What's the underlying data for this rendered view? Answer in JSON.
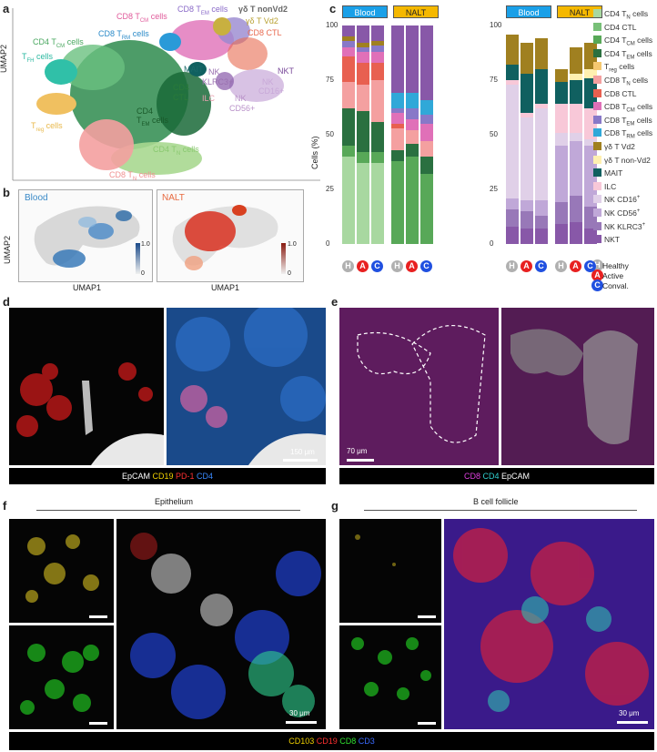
{
  "panels": {
    "a": "a",
    "b": "b",
    "c": "c",
    "d": "d",
    "e": "e",
    "f": "f",
    "g": "g"
  },
  "umap_a": {
    "ylabel": "UMAP2",
    "labels": [
      {
        "text": "CD8 T",
        "sub": "CM",
        "suffix": " cells",
        "color": "#e05a9a"
      },
      {
        "text": "CD8 T",
        "sub": "EM",
        "suffix": " cells",
        "color": "#8a6ac8"
      },
      {
        "text": "γδ T nonVd2",
        "color": "#666"
      },
      {
        "text": "γδ T Vd2",
        "color": "#b8a030"
      },
      {
        "text": "CD8 CTL",
        "color": "#e86a50"
      },
      {
        "text": "CD4 T",
        "sub": "CM",
        "suffix": " cells",
        "color": "#4aa860"
      },
      {
        "text": "CD8 T",
        "sub": "RM",
        "suffix": " cells",
        "color": "#2a8ac8"
      },
      {
        "text": "T",
        "sub": "FH",
        "suffix": " cells",
        "color": "#2ab8a0"
      },
      {
        "text": "MAIT",
        "color": "#1a6a6a"
      },
      {
        "text": "NKT",
        "color": "#7a4a9a"
      },
      {
        "text": "NK",
        "color": "#9a70b0"
      },
      {
        "text": "KLRC3+",
        "color": "#9a70b0"
      },
      {
        "text": "CD4",
        "color": "#2a7a3a"
      },
      {
        "text": "CTL",
        "color": "#2a7a3a"
      },
      {
        "text": "CD4",
        "color": "#1a5a2a"
      },
      {
        "text": "T",
        "sub": "EM",
        "suffix": " cells",
        "color": "#1a5a2a"
      },
      {
        "text": "ILC",
        "color": "#e8a0b0"
      },
      {
        "text": "NK",
        "color": "#c8a8d8"
      },
      {
        "text": "CD16+",
        "color": "#c8a8d8"
      },
      {
        "text": "NK",
        "color": "#b890c8"
      },
      {
        "text": "CD56+",
        "color": "#b890c8"
      },
      {
        "text": "T",
        "sub": "reg",
        "suffix": " cells",
        "color": "#e8b84a"
      },
      {
        "text": "CD4 T",
        "sub": "N",
        "suffix": " cells",
        "color": "#8ac870"
      },
      {
        "text": "CD8 T",
        "sub": "N",
        "suffix": " cells",
        "color": "#f09090"
      }
    ]
  },
  "umap_b": {
    "ylabel": "UMAP2",
    "xlabel": "UMAP1",
    "blood_title": "Blood",
    "nalt_title": "NALT",
    "scale_max": "1.0",
    "scale_min": "0"
  },
  "chart_c": {
    "ylabel": "Cells (%)",
    "ticks": [
      "0",
      "25",
      "50",
      "75",
      "100"
    ],
    "group_headers": [
      "Blood",
      "NALT"
    ],
    "conditions": [
      "H",
      "A",
      "C"
    ],
    "condition_legend": [
      "Healthy",
      "Active",
      "Conval."
    ]
  },
  "chart_data": [
    {
      "type": "bar",
      "title": "",
      "ylabel": "Cells (%)",
      "ylim": [
        0,
        100
      ],
      "stacked": true,
      "categories": [
        "Blood H",
        "Blood A",
        "Blood C",
        "NALT H",
        "NALT A",
        "NALT C"
      ],
      "series": [
        {
          "name": "CD4 TN cells",
          "color": "#a8d8a0",
          "values": [
            40,
            37,
            37,
            0,
            0,
            0
          ]
        },
        {
          "name": "CD4 CTL",
          "color": "#78c078",
          "values": [
            0,
            0,
            0,
            0,
            0,
            0
          ]
        },
        {
          "name": "CD4 TCM cells",
          "color": "#58a858",
          "values": [
            5,
            5,
            5,
            38,
            40,
            32
          ]
        },
        {
          "name": "CD4 TEM cells",
          "color": "#2a7040",
          "values": [
            17,
            19,
            14,
            5,
            6,
            8
          ]
        },
        {
          "name": "Treg cells",
          "color": "#f5c870",
          "values": [
            0,
            0,
            0,
            0,
            0,
            0
          ]
        },
        {
          "name": "CD8 TN cells",
          "color": "#f4a0a0",
          "values": [
            12,
            12,
            19,
            10,
            6,
            7
          ]
        },
        {
          "name": "CD8 CTL",
          "color": "#e86050",
          "values": [
            12,
            10,
            8,
            2,
            0,
            0
          ]
        },
        {
          "name": "CD8 TCM cells",
          "color": "#e070b8",
          "values": [
            4,
            5,
            5,
            5,
            5,
            8
          ]
        },
        {
          "name": "CD8 TEM cells",
          "color": "#8878c8",
          "values": [
            3,
            2,
            3,
            2,
            5,
            4
          ]
        },
        {
          "name": "CD8 TRM cells",
          "color": "#30a8d8",
          "values": [
            0,
            0,
            0,
            7,
            7,
            7
          ]
        },
        {
          "name": "γδ T Vd2",
          "color": "#a08020",
          "values": [
            2,
            2,
            2,
            0,
            0,
            0
          ]
        },
        {
          "name": "γδ T non-Vd2",
          "color": "#fff0b0",
          "values": [
            0,
            0,
            0,
            0,
            0,
            0
          ]
        },
        {
          "name": "MAIT",
          "color": "#106060",
          "values": [
            0,
            0,
            0,
            0,
            0,
            0
          ]
        },
        {
          "name": "ILC",
          "color": "#f8c8d8",
          "values": [
            0,
            0,
            0,
            0,
            0,
            0
          ]
        },
        {
          "name": "NK CD16+",
          "color": "#e0d0e8",
          "values": [
            0,
            0,
            0,
            0,
            0,
            0
          ]
        },
        {
          "name": "NK CD56+",
          "color": "#c0a8d8",
          "values": [
            0,
            0,
            0,
            0,
            0,
            0
          ]
        },
        {
          "name": "NK KLRC3+",
          "color": "#9878b8",
          "values": [
            0,
            0,
            0,
            0,
            0,
            0
          ]
        },
        {
          "name": "NKT",
          "color": "#8858a8",
          "values": [
            5,
            8,
            7,
            31,
            31,
            34
          ]
        }
      ]
    },
    {
      "type": "bar",
      "title": "",
      "ylabel": "Cells (%)",
      "ylim": [
        0,
        100
      ],
      "stacked": true,
      "categories": [
        "Blood H",
        "Blood A",
        "Blood C",
        "NALT H",
        "NALT A",
        "NALT C"
      ],
      "series": [
        {
          "name": "NKT",
          "color": "#8858a8",
          "values": [
            8,
            7,
            7,
            9,
            10,
            7
          ]
        },
        {
          "name": "NK KLRC3+",
          "color": "#9878b8",
          "values": [
            8,
            8,
            6,
            10,
            12,
            10
          ]
        },
        {
          "name": "NK CD56+",
          "color": "#c0a8d8",
          "values": [
            5,
            5,
            7,
            26,
            25,
            28
          ]
        },
        {
          "name": "NK CD16+",
          "color": "#e0d0e8",
          "values": [
            52,
            38,
            42,
            6,
            4,
            3
          ]
        },
        {
          "name": "ILC",
          "color": "#f8c8d8",
          "values": [
            2,
            2,
            2,
            13,
            13,
            14
          ]
        },
        {
          "name": "MAIT",
          "color": "#106060",
          "values": [
            7,
            18,
            16,
            10,
            11,
            14
          ]
        },
        {
          "name": "γδ T non-Vd2",
          "color": "#fff0b0",
          "values": [
            0,
            0,
            0,
            0,
            3,
            4
          ]
        },
        {
          "name": "γδ T Vd2",
          "color": "#a08020",
          "values": [
            14,
            14,
            14,
            6,
            12,
            12
          ]
        }
      ]
    }
  ],
  "legend_c": [
    {
      "name": "CD4 T",
      "sub": "N",
      "suffix": " cells",
      "color": "#a8d8a0"
    },
    {
      "name": "CD4 CTL",
      "color": "#78c078"
    },
    {
      "name": "CD4 T",
      "sub": "CM",
      "suffix": " cells",
      "color": "#58a858"
    },
    {
      "name": "CD4 T",
      "sub": "EM",
      "suffix": " cells",
      "color": "#2a7040"
    },
    {
      "name": "T",
      "sub": "reg",
      "suffix": " cells",
      "color": "#f5c870"
    },
    {
      "name": "CD8 T",
      "sub": "N",
      "suffix": " cells",
      "color": "#f4a0a0"
    },
    {
      "name": "CD8 CTL",
      "color": "#e86050"
    },
    {
      "name": "CD8 T",
      "sub": "CM",
      "suffix": " cells",
      "color": "#e070b8"
    },
    {
      "name": "CD8 T",
      "sub": "EM",
      "suffix": " cells",
      "color": "#8878c8"
    },
    {
      "name": "CD8 T",
      "sub": "RM",
      "suffix": " cells",
      "color": "#30a8d8"
    },
    {
      "name": "γδ T Vd2",
      "color": "#a08020"
    },
    {
      "name": "γδ T non-Vd2",
      "color": "#fff0b0"
    },
    {
      "name": "MAIT",
      "color": "#106060"
    },
    {
      "name": "ILC",
      "color": "#f8c8d8"
    },
    {
      "name": "NK CD16",
      "sup": "+",
      "color": "#e0d0e8"
    },
    {
      "name": "NK CD56",
      "sup": "+",
      "color": "#c0a8d8"
    },
    {
      "name": "NK KLRC3",
      "sup": "+",
      "color": "#9878b8"
    },
    {
      "name": "NKT",
      "color": "#8858a8"
    }
  ],
  "panel_d": {
    "scale": "150 μm",
    "caption": [
      {
        "t": "EpCAM ",
        "c": "#ffffff"
      },
      {
        "t": "CD19 ",
        "c": "#f2d200"
      },
      {
        "t": "PD-1 ",
        "c": "#ff3030"
      },
      {
        "t": "CD4",
        "c": "#3a8aff"
      }
    ]
  },
  "panel_e": {
    "scale": "70 μm",
    "caption": [
      {
        "t": "CD8 ",
        "c": "#e040e0"
      },
      {
        "t": "CD4 ",
        "c": "#30d0d0"
      },
      {
        "t": "EpCAM",
        "c": "#ffffff"
      }
    ]
  },
  "panel_f": {
    "title": "Epithelium",
    "scale": "30 μm"
  },
  "panel_g": {
    "title": "B cell follicle",
    "scale": "30 μm"
  },
  "caption_fg": [
    {
      "t": "CD103 ",
      "c": "#f2d200"
    },
    {
      "t": "CD19 ",
      "c": "#ff3030"
    },
    {
      "t": "CD8 ",
      "c": "#30e030"
    },
    {
      "t": "CD3",
      "c": "#3a6aff"
    }
  ],
  "colors": {
    "blood_header": "#1aa0e8",
    "nalt_header": "#f5b800",
    "healthy": "#b0b0b0",
    "active": "#e82020",
    "conval": "#2050e0"
  }
}
